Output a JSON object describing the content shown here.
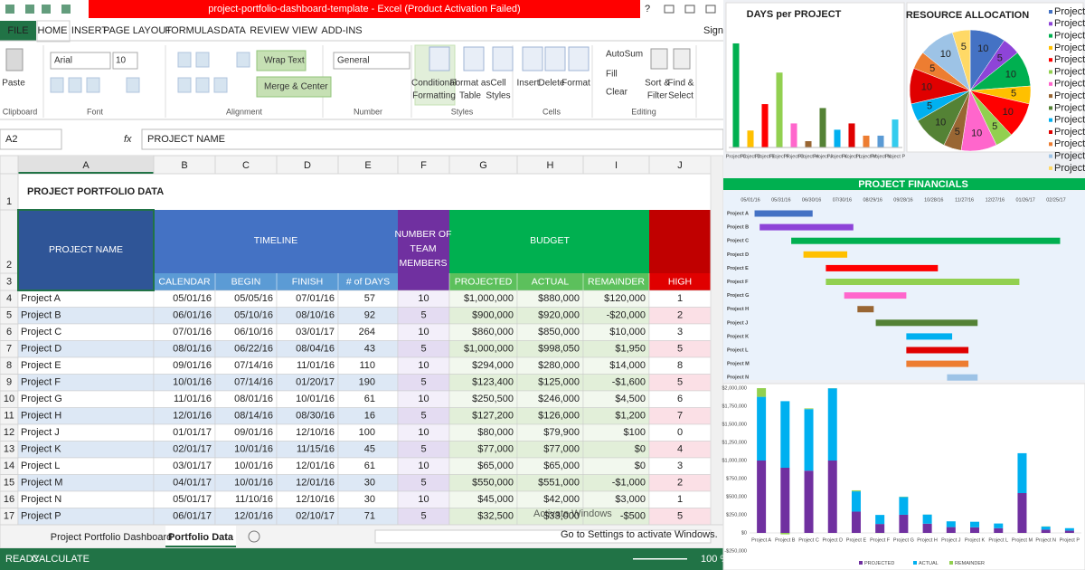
{
  "window": {
    "title": "project-portfolio-dashboard-template - Excel (Product Activation Failed)",
    "help": "?",
    "sign_in": "Sign in"
  },
  "ribbon": {
    "tabs": [
      "FILE",
      "HOME",
      "INSERT",
      "PAGE LAYOUT",
      "FORMULAS",
      "DATA",
      "REVIEW",
      "VIEW",
      "ADD-INS"
    ],
    "font_name": "Arial",
    "font_size": "10",
    "number_format": "General",
    "buttons": [
      "Paste",
      "Wrap Text",
      "Merge & Center",
      "AutoSum",
      "Fill",
      "Clear",
      "Insert",
      "Delete",
      "Format",
      [
        "Conditional",
        "Formatting"
      ],
      [
        "Format as",
        "Table"
      ],
      [
        "Cell",
        "Styles"
      ],
      [
        "Sort &",
        "Filter"
      ],
      [
        "Find &",
        "Select"
      ]
    ],
    "groups": [
      "Clipboard",
      "Font",
      "Alignment",
      "Number",
      "Styles",
      "Cells",
      "Editing"
    ]
  },
  "formula_bar": {
    "name_box": "A2",
    "fx": "fx",
    "content": "PROJECT NAME"
  },
  "sheet": {
    "columns": [
      "A",
      "B",
      "C",
      "D",
      "E",
      "F",
      "G",
      "H",
      "I",
      "J"
    ],
    "row_numbers": [
      1,
      2,
      3,
      4,
      5,
      6,
      7,
      8,
      9,
      10,
      11,
      12,
      13,
      14,
      15,
      16,
      17
    ],
    "title": "PROJECT PORTFOLIO DATA",
    "headers": {
      "project": "PROJECT NAME",
      "timeline": "TIMELINE",
      "team": [
        "NUMBER OF",
        "TEAM",
        "MEMBERS"
      ],
      "budget": "BUDGET",
      "sub": [
        "CALENDAR",
        "BEGIN",
        "FINISH",
        "# of DAYS",
        "PROJECTED",
        "ACTUAL",
        "REMAINDER",
        "HIGH"
      ]
    },
    "rows": [
      [
        "Project A",
        "05/01/16",
        "05/05/16",
        "07/01/16",
        "57",
        "10",
        "$1,000,000",
        "$880,000",
        "$120,000",
        "1"
      ],
      [
        "Project B",
        "06/01/16",
        "05/10/16",
        "08/10/16",
        "92",
        "5",
        "$900,000",
        "$920,000",
        "-$20,000",
        "2"
      ],
      [
        "Project C",
        "07/01/16",
        "06/10/16",
        "03/01/17",
        "264",
        "10",
        "$860,000",
        "$850,000",
        "$10,000",
        "3"
      ],
      [
        "Project D",
        "08/01/16",
        "06/22/16",
        "08/04/16",
        "43",
        "5",
        "$1,000,000",
        "$998,050",
        "$1,950",
        "5"
      ],
      [
        "Project E",
        "09/01/16",
        "07/14/16",
        "11/01/16",
        "110",
        "10",
        "$294,000",
        "$280,000",
        "$14,000",
        "8"
      ],
      [
        "Project F",
        "10/01/16",
        "07/14/16",
        "01/20/17",
        "190",
        "5",
        "$123,400",
        "$125,000",
        "-$1,600",
        "5"
      ],
      [
        "Project G",
        "11/01/16",
        "08/01/16",
        "10/01/16",
        "61",
        "10",
        "$250,500",
        "$246,000",
        "$4,500",
        "6"
      ],
      [
        "Project H",
        "12/01/16",
        "08/14/16",
        "08/30/16",
        "16",
        "5",
        "$127,200",
        "$126,000",
        "$1,200",
        "7"
      ],
      [
        "Project J",
        "01/01/17",
        "09/01/16",
        "12/10/16",
        "100",
        "10",
        "$80,000",
        "$79,900",
        "$100",
        "0"
      ],
      [
        "Project K",
        "02/01/17",
        "10/01/16",
        "11/15/16",
        "45",
        "5",
        "$77,000",
        "$77,000",
        "$0",
        "4"
      ],
      [
        "Project L",
        "03/01/17",
        "10/01/16",
        "12/01/16",
        "61",
        "10",
        "$65,000",
        "$65,000",
        "$0",
        "3"
      ],
      [
        "Project M",
        "04/01/17",
        "10/01/16",
        "12/01/16",
        "30",
        "5",
        "$550,000",
        "$551,000",
        "-$1,000",
        "2"
      ],
      [
        "Project N",
        "05/01/17",
        "11/10/16",
        "12/10/16",
        "30",
        "10",
        "$45,000",
        "$42,000",
        "$3,000",
        "1"
      ],
      [
        "Project P",
        "06/01/17",
        "12/01/16",
        "02/10/17",
        "71",
        "5",
        "$32,500",
        "$33,000",
        "-$500",
        "5"
      ]
    ]
  },
  "sheet_tabs": [
    "Project Portfolio Dashboard",
    "Portfolio Data"
  ],
  "status": {
    "left": [
      "READY",
      "CALCULATE"
    ],
    "zoom": "100 %"
  },
  "watermark": [
    "Activate Windows",
    "Go to Settings to activate Windows."
  ],
  "chart_data": [
    {
      "type": "bar",
      "title": "DAYS per PROJECT",
      "categories": [
        "Project C",
        "Project D",
        "Project E",
        "Project F",
        "Project G",
        "Project H",
        "Project J",
        "Project K",
        "Project L",
        "Project M",
        "Project N",
        "Project P"
      ],
      "values": [
        264,
        43,
        110,
        190,
        61,
        16,
        100,
        45,
        61,
        30,
        30,
        71
      ],
      "colors": [
        "#00b050",
        "#ffc000",
        "#ff0000",
        "#92d050",
        "#ff66cc",
        "#996633",
        "#548235",
        "#00b0f0",
        "#e00000",
        "#ed7d31",
        "#5b9bd5",
        "#33ccee"
      ],
      "ylim": [
        0,
        280
      ]
    },
    {
      "type": "pie",
      "title": "RESOURCE ALLOCATION",
      "categories": [
        "Project A",
        "Project B",
        "Project C",
        "Project D",
        "Project E",
        "Project F",
        "Project G",
        "Project H",
        "Project J",
        "Project K",
        "Project L",
        "Project M",
        "Project N",
        "Project P"
      ],
      "values": [
        10,
        5,
        10,
        5,
        10,
        5,
        10,
        5,
        10,
        5,
        10,
        5,
        10,
        5
      ],
      "colors": [
        "#4472c4",
        "#8e44d8",
        "#00b050",
        "#ffc000",
        "#ff0000",
        "#92d050",
        "#ff66cc",
        "#996633",
        "#548235",
        "#00b0f0",
        "#e00000",
        "#ed7d31",
        "#9dc3e6",
        "#ffd966"
      ]
    },
    {
      "type": "gantt",
      "title": "PROJECT FINANCIALS",
      "categories": [
        "Project A",
        "Project B",
        "Project C",
        "Project D",
        "Project E",
        "Project F",
        "Project G",
        "Project H",
        "Project J",
        "Project K",
        "Project L",
        "Project M",
        "Project N"
      ],
      "begin": [
        "05/05/16",
        "05/10/16",
        "06/10/16",
        "06/22/16",
        "07/14/16",
        "07/14/16",
        "08/01/16",
        "08/14/16",
        "09/01/16",
        "10/01/16",
        "10/01/16",
        "10/01/16",
        "11/10/16"
      ],
      "finish": [
        "07/01/16",
        "08/10/16",
        "03/01/17",
        "08/04/16",
        "11/01/16",
        "01/20/17",
        "10/01/16",
        "08/30/16",
        "12/10/16",
        "11/15/16",
        "12/01/16",
        "12/01/16",
        "12/10/16"
      ],
      "colors": [
        "#4472c4",
        "#8e44d8",
        "#00b050",
        "#ffc000",
        "#ff0000",
        "#92d050",
        "#ff66cc",
        "#996633",
        "#548235",
        "#00b0f0",
        "#e00000",
        "#ed7d31",
        "#9dc3e6"
      ],
      "xlim": [
        "04/07/16",
        "03/21/17"
      ],
      "xticks": [
        "05/01/16",
        "05/31/16",
        "06/30/16",
        "07/30/16",
        "08/29/16",
        "09/28/16",
        "10/28/16",
        "11/27/16",
        "12/27/16",
        "01/26/17",
        "02/25/17"
      ]
    },
    {
      "type": "stacked_bar",
      "categories": [
        "Project A",
        "Project B",
        "Project C",
        "Project D",
        "Project E",
        "Project F",
        "Project G",
        "Project H",
        "Project J",
        "Project K",
        "Project L",
        "Project M",
        "Project N",
        "Project P"
      ],
      "series": [
        {
          "name": "PROJECTED",
          "color": "#7030a0",
          "values": [
            1000000,
            900000,
            860000,
            1000000,
            294000,
            123400,
            250500,
            127200,
            80000,
            77000,
            65000,
            550000,
            45000,
            32500
          ]
        },
        {
          "name": "ACTUAL",
          "color": "#00b0f0",
          "values": [
            880000,
            920000,
            850000,
            998050,
            280000,
            125000,
            246000,
            126000,
            79900,
            77000,
            65000,
            551000,
            42000,
            33000
          ]
        },
        {
          "name": "REMAINDER",
          "color": "#92d050",
          "values": [
            120000,
            -20000,
            10000,
            1950,
            14000,
            -1600,
            4500,
            1200,
            100,
            0,
            0,
            -1000,
            3000,
            -500
          ]
        }
      ],
      "ylim": [
        -250000,
        2000000
      ],
      "yticks": [
        {
          "value": -250000,
          "label": "-$250,000"
        },
        {
          "value": 0,
          "label": "$0"
        },
        {
          "value": 250000,
          "label": "$250,000"
        },
        {
          "value": 500000,
          "label": "$500,000"
        },
        {
          "value": 750000,
          "label": "$750,000"
        },
        {
          "value": 1000000,
          "label": "$1,000,000"
        },
        {
          "value": 1250000,
          "label": "$1,250,000"
        },
        {
          "value": 1500000,
          "label": "$1,500,000"
        },
        {
          "value": 1750000,
          "label": "$1,750,000"
        },
        {
          "value": 2000000,
          "label": "$2,000,000"
        }
      ]
    }
  ]
}
